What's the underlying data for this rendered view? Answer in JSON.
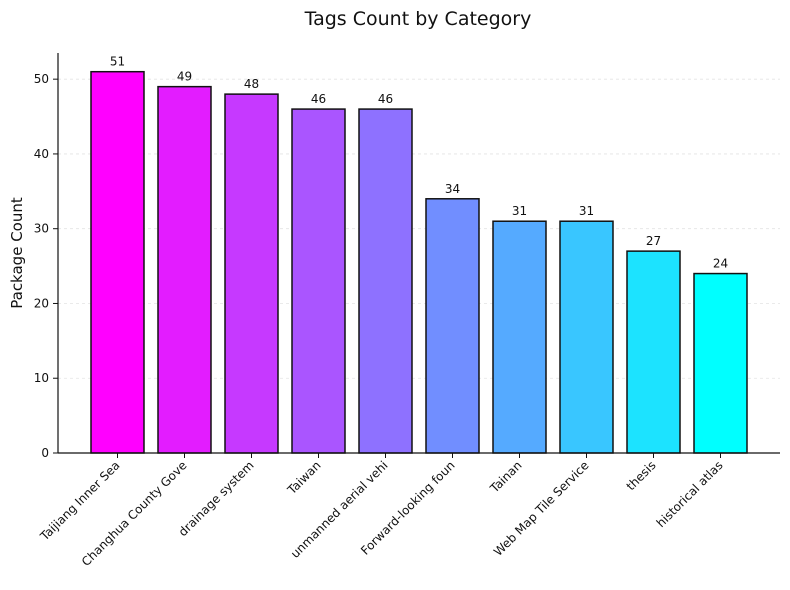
{
  "chart_data": {
    "type": "bar",
    "title": "Tags Count by Category",
    "xlabel": "",
    "ylabel": "Package Count",
    "categories": [
      "Taijiang Inner Sea",
      "Changhua County Gove",
      "drainage system",
      "Taiwan",
      "unmanned aerial vehi",
      "Forward-looking foun",
      "Tainan",
      "Web Map Tile Service",
      "thesis",
      "historical atlas"
    ],
    "values": [
      51,
      49,
      48,
      46,
      46,
      34,
      31,
      31,
      27,
      24
    ],
    "ylim": [
      0,
      53.5
    ],
    "yticks": [
      0,
      10,
      20,
      30,
      40,
      50
    ],
    "grid": "horizontal",
    "colormap_colors": [
      "#ff00ff",
      "#00ffff"
    ]
  }
}
